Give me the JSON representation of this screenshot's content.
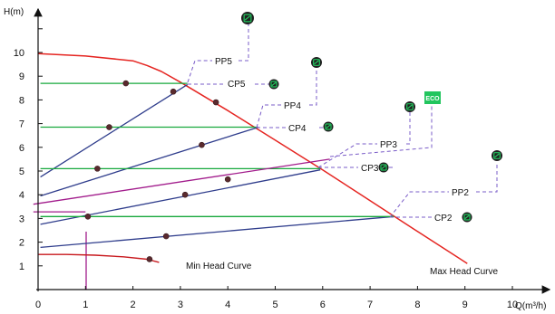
{
  "chart_data": {
    "type": "line",
    "title": "",
    "xlabel": "Q(m³/h)",
    "ylabel": "H(m)",
    "xlim": [
      0,
      10
    ],
    "ylim": [
      0,
      11
    ],
    "x_ticks": [
      "0",
      "1",
      "2",
      "3",
      "4",
      "5",
      "6",
      "7",
      "8",
      "9",
      "10"
    ],
    "y_ticks": [
      "1",
      "2",
      "3",
      "4",
      "5",
      "6",
      "7",
      "8",
      "9",
      "10"
    ],
    "grid": false,
    "colors": {
      "max_head": "#e52521",
      "min_head": "#c8191e",
      "pp": "#2f3d8c",
      "cp": "#17a83c",
      "eco": "#a21c8c",
      "leader": "#7a5cc8",
      "icon_dark": "#1f1f1f",
      "icon_green": "#22c55e"
    },
    "series": [
      {
        "name": "Max Head Curve",
        "x": [
          0,
          1,
          2,
          2.3,
          2.6,
          3,
          4,
          5,
          6,
          7,
          8,
          9.05
        ],
        "y": [
          9.95,
          9.85,
          9.65,
          9.45,
          9.2,
          8.75,
          7.55,
          6.3,
          5.05,
          3.75,
          2.45,
          1.1
        ]
      },
      {
        "name": "Min Head Curve",
        "x": [
          0,
          0.6,
          1.2,
          1.8,
          2.3,
          2.55
        ],
        "y": [
          1.48,
          1.48,
          1.45,
          1.38,
          1.28,
          1.15
        ]
      },
      {
        "name": "PP5",
        "x": [
          0.05,
          3.15
        ],
        "y": [
          4.75,
          8.65
        ]
      },
      {
        "name": "PP4",
        "x": [
          0.05,
          4.65
        ],
        "y": [
          3.95,
          6.85
        ]
      },
      {
        "name": "PP3",
        "x": [
          0.05,
          5.95
        ],
        "y": [
          2.75,
          5.05
        ]
      },
      {
        "name": "PP2",
        "x": [
          0.05,
          7.5
        ],
        "y": [
          1.78,
          3.08
        ]
      },
      {
        "name": "CP5",
        "x": [
          0.05,
          3.15
        ],
        "y": [
          8.7,
          8.7
        ]
      },
      {
        "name": "CP4",
        "x": [
          0.05,
          4.6
        ],
        "y": [
          6.85,
          6.85
        ]
      },
      {
        "name": "CP3",
        "x": [
          0.05,
          5.95
        ],
        "y": [
          5.1,
          5.1
        ]
      },
      {
        "name": "CP2",
        "x": [
          0.05,
          7.5
        ],
        "y": [
          3.08,
          3.08
        ]
      },
      {
        "name": "ECO",
        "x": [
          -0.1,
          6.15
        ],
        "y": [
          3.6,
          5.5
        ]
      },
      {
        "name": "ECO low",
        "x": [
          -0.1,
          1.0
        ],
        "y": [
          3.28,
          3.28
        ]
      }
    ],
    "markers": [
      {
        "x": 1.85,
        "y": 8.7
      },
      {
        "x": 2.85,
        "y": 8.35
      },
      {
        "x": 3.75,
        "y": 7.9
      },
      {
        "x": 1.5,
        "y": 6.85
      },
      {
        "x": 3.45,
        "y": 6.1
      },
      {
        "x": 1.25,
        "y": 5.1
      },
      {
        "x": 3.1,
        "y": 4.0
      },
      {
        "x": 4.0,
        "y": 4.65
      },
      {
        "x": 1.05,
        "y": 3.08
      },
      {
        "x": 2.7,
        "y": 2.25
      },
      {
        "x": 2.35,
        "y": 1.28
      }
    ],
    "labels": {
      "pp5": "PP5",
      "cp5": "CP5",
      "pp4": "PP4",
      "cp4": "CP4",
      "pp3": "PP3",
      "cp3": "CP3",
      "pp2": "PP2",
      "cp2": "CP2",
      "max_head": "Max Head Curve",
      "min_head": "Min Head Curve",
      "eco": "ECO"
    }
  }
}
